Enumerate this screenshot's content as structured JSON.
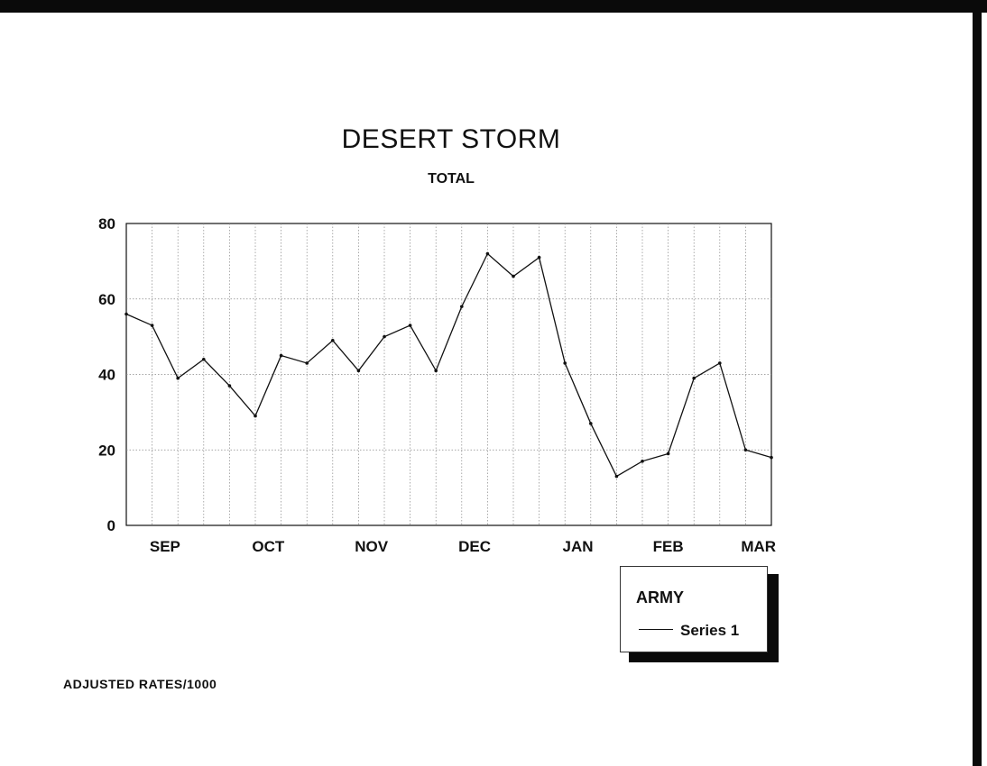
{
  "chart_data": {
    "type": "line",
    "title": "DESERT STORM",
    "subtitle": "TOTAL",
    "footnote": "ADJUSTED RATES/1000",
    "xlabel": "",
    "ylabel": "",
    "ylim": [
      0,
      80
    ],
    "y_ticks": [
      "0",
      "20",
      "40",
      "60",
      "80"
    ],
    "x_month_labels": [
      {
        "label": "SEP",
        "index": 1.5
      },
      {
        "label": "OCT",
        "index": 5.5
      },
      {
        "label": "NOV",
        "index": 9.5
      },
      {
        "label": "DEC",
        "index": 13.5
      },
      {
        "label": "JAN",
        "index": 17.5
      },
      {
        "label": "FEB",
        "index": 21.0
      },
      {
        "label": "MAR",
        "index": 24.5
      }
    ],
    "x_points": 26,
    "grid": true,
    "legend_title": "ARMY",
    "legend_position": "bottom-right",
    "series": [
      {
        "name": "Series 1",
        "values": [
          56,
          53,
          39,
          44,
          37,
          29,
          45,
          43,
          49,
          41,
          50,
          53,
          41,
          58,
          72,
          66,
          71,
          43,
          27,
          13,
          17,
          19,
          39,
          43,
          20,
          18
        ]
      }
    ]
  }
}
